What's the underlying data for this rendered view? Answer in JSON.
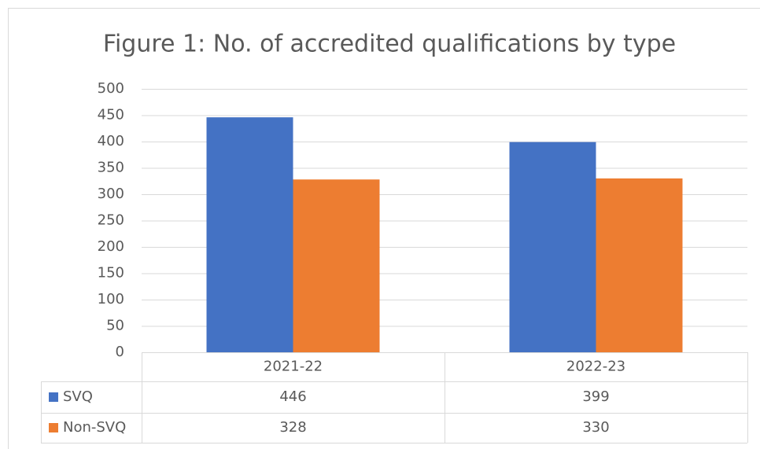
{
  "chart_data": {
    "type": "bar",
    "title": "Figure 1: No. of accredited qualifications by type",
    "categories": [
      "2021-22",
      "2022-23"
    ],
    "series": [
      {
        "name": "SVQ",
        "color": "#4472c4",
        "values": [
          446,
          399
        ]
      },
      {
        "name": "Non-SVQ",
        "color": "#ed7d31",
        "values": [
          328,
          330
        ]
      }
    ],
    "ylim": [
      0,
      500
    ],
    "yticks": [
      0,
      50,
      100,
      150,
      200,
      250,
      300,
      350,
      400,
      450,
      500
    ],
    "grid": true,
    "data_table": true
  }
}
